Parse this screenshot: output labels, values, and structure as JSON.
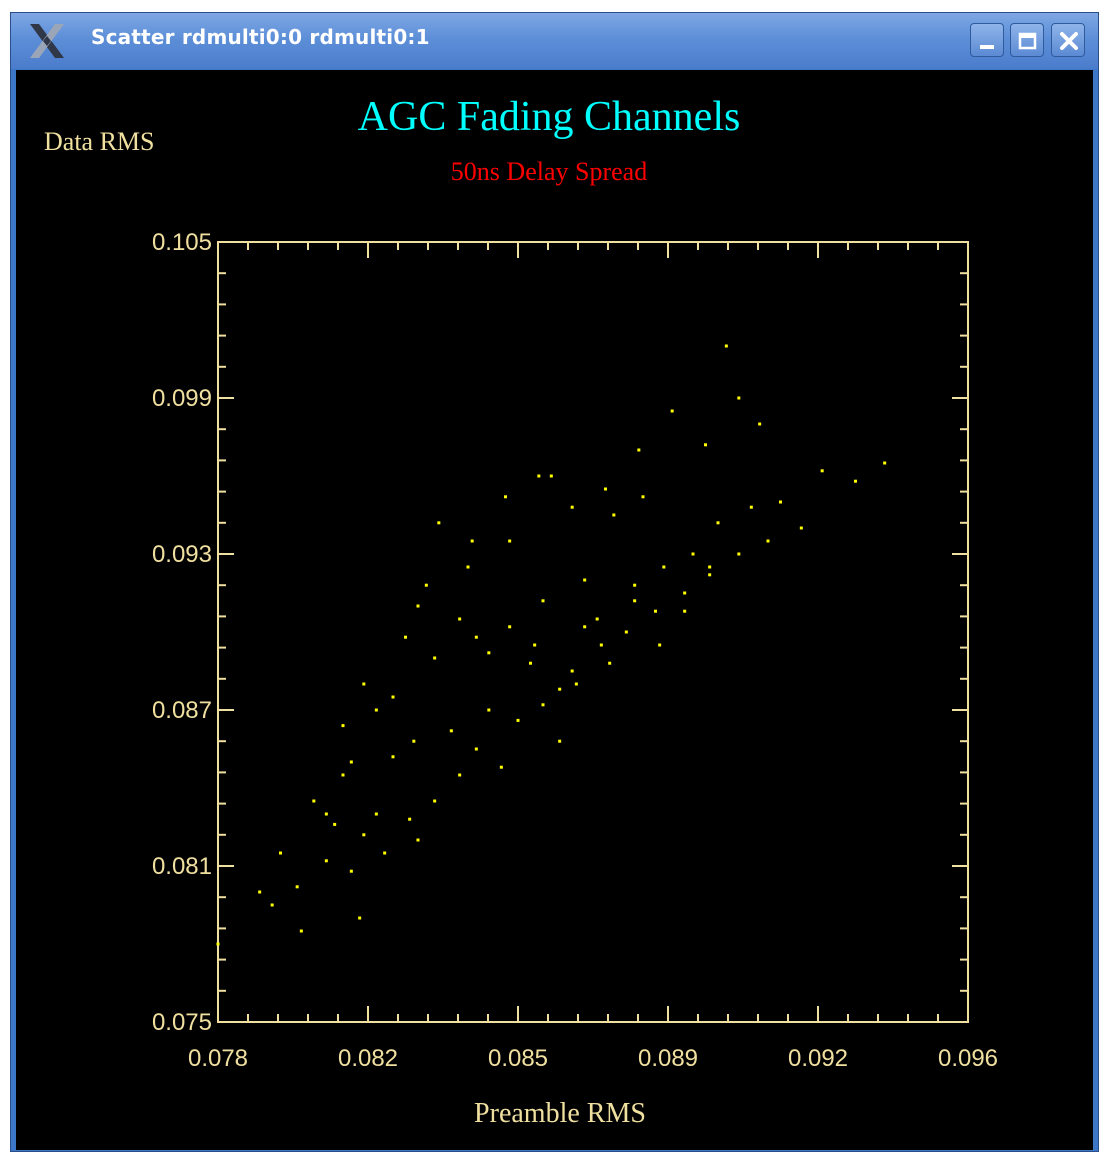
{
  "window": {
    "title": "Scatter rdmulti0:0 rdmulti0:1",
    "app_icon": "x-logo-icon",
    "controls": [
      "minimize-icon",
      "maximize-icon",
      "close-icon"
    ]
  },
  "colors": {
    "background": "#000000",
    "axis": "#f0e0a0",
    "title": "#00ffff",
    "subtitle": "#ff0000",
    "points": "#ffff00",
    "titlebar": "#5d8fd8"
  },
  "chart_data": {
    "type": "scatter",
    "title": "AGC Fading Channels",
    "subtitle": "50ns Delay Spread",
    "xlabel": "Preamble RMS",
    "ylabel": "Data RMS",
    "xlim": [
      0.078,
      0.096
    ],
    "ylim": [
      0.075,
      0.105
    ],
    "x_ticks": [
      0.078,
      0.0816,
      0.0852,
      0.0888,
      0.0924,
      0.096
    ],
    "x_tick_labels": [
      "0.078",
      "0.082",
      "0.085",
      "0.089",
      "0.092",
      "0.096"
    ],
    "y_ticks": [
      0.075,
      0.081,
      0.087,
      0.093,
      0.099,
      0.105
    ],
    "y_tick_labels": [
      "0.075",
      "0.081",
      "0.087",
      "0.093",
      "0.099",
      "0.105"
    ],
    "grid": false,
    "series": [
      {
        "color": "#ffff00",
        "x": [
          0.078,
          0.0793,
          0.0799,
          0.0812,
          0.082,
          0.0814,
          0.08,
          0.0806,
          0.0815,
          0.0808,
          0.0818,
          0.0826,
          0.0832,
          0.0828,
          0.0838,
          0.0803,
          0.0795,
          0.079,
          0.081,
          0.0822,
          0.0827,
          0.0836,
          0.0842,
          0.0845,
          0.0848,
          0.0852,
          0.0858,
          0.0862,
          0.0866,
          0.0855,
          0.0845,
          0.0838,
          0.0828,
          0.0815,
          0.081,
          0.0822,
          0.0832,
          0.0842,
          0.085,
          0.0858,
          0.0865,
          0.0872,
          0.0878,
          0.0885,
          0.0892,
          0.0898,
          0.0905,
          0.0912,
          0.092,
          0.0868,
          0.0875,
          0.0882,
          0.086,
          0.085,
          0.084,
          0.083,
          0.0825,
          0.0818,
          0.0812,
          0.0806,
          0.0871,
          0.088,
          0.0887,
          0.0894,
          0.09,
          0.0908,
          0.0915,
          0.0925,
          0.0933,
          0.094,
          0.0905,
          0.0897,
          0.0889,
          0.0881,
          0.0873,
          0.0865,
          0.0857,
          0.0849,
          0.0841,
          0.0833,
          0.0856,
          0.0862,
          0.0868,
          0.0874,
          0.088,
          0.0886,
          0.0892,
          0.0898,
          0.0902,
          0.091
        ],
        "y": [
          0.078,
          0.0795,
          0.0802,
          0.0808,
          0.0815,
          0.079,
          0.0785,
          0.0812,
          0.0822,
          0.0826,
          0.083,
          0.0828,
          0.0835,
          0.082,
          0.0845,
          0.0835,
          0.0815,
          0.08,
          0.0845,
          0.0852,
          0.0858,
          0.0862,
          0.0855,
          0.087,
          0.0848,
          0.0866,
          0.0872,
          0.0858,
          0.088,
          0.0888,
          0.0892,
          0.0905,
          0.091,
          0.088,
          0.0864,
          0.0875,
          0.089,
          0.0898,
          0.0902,
          0.0912,
          0.0885,
          0.0895,
          0.09,
          0.0908,
          0.0915,
          0.0922,
          0.093,
          0.0935,
          0.094,
          0.092,
          0.0945,
          0.0952,
          0.096,
          0.0935,
          0.0925,
          0.0918,
          0.0898,
          0.087,
          0.085,
          0.083,
          0.0905,
          0.0912,
          0.0925,
          0.093,
          0.0942,
          0.0948,
          0.095,
          0.0962,
          0.0958,
          0.0965,
          0.099,
          0.0972,
          0.0985,
          0.097,
          0.0955,
          0.0948,
          0.096,
          0.0952,
          0.0935,
          0.0942,
          0.0895,
          0.0878,
          0.0902,
          0.0888,
          0.0918,
          0.0895,
          0.0908,
          0.0925,
          0.101,
          0.098
        ]
      }
    ]
  }
}
